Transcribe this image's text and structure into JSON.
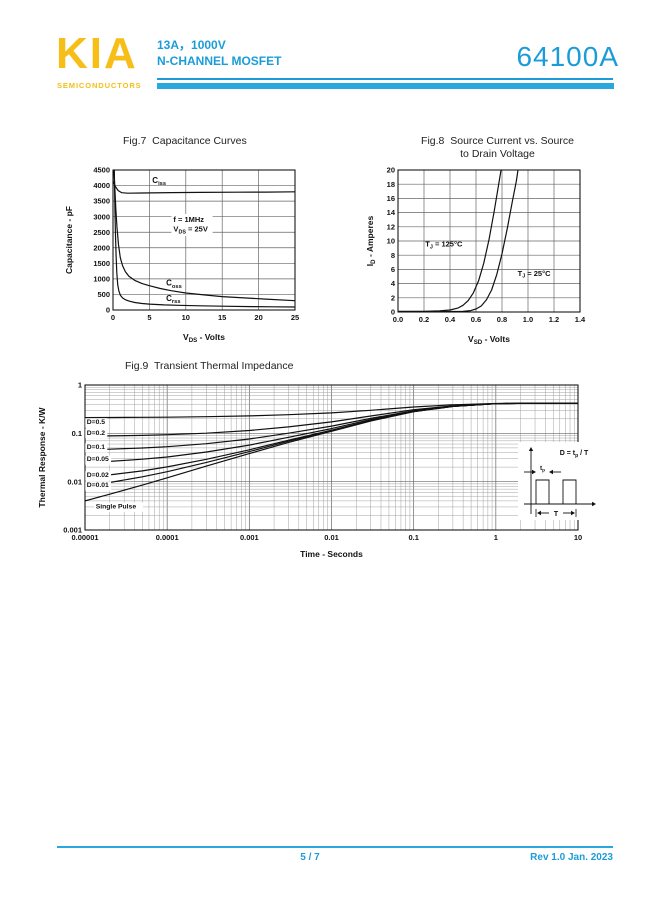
{
  "theme": {
    "brand_yellow": "#F6BE16",
    "brand_blue": "#1B9CD8",
    "bar_blue": "#2AA7DE",
    "chart_line": "#111111"
  },
  "header": {
    "logo_text": "KIA",
    "logo_subtext": "SEMICONDUCTORS",
    "subtitle_line1": "13A，1000V",
    "subtitle_line2": "N-CHANNEL MOSFET",
    "part_number": "64100A"
  },
  "footer": {
    "page_indicator": "5 / 7",
    "revision": "Rev 1.0 Jan. 2023"
  },
  "chart_data": [
    {
      "id": "fig7",
      "type": "line",
      "title": "Fig.7  Capacitance Curves",
      "xlabel": "V_{DS} - Volts",
      "ylabel": "Capacitance - pF",
      "xscale": "linear",
      "yscale": "linear",
      "xlim": [
        0,
        25
      ],
      "ylim": [
        0,
        4500
      ],
      "grid": true,
      "xticks": [
        {
          "v": 0,
          "label": "0"
        },
        {
          "v": 5,
          "label": "5"
        },
        {
          "v": 10,
          "label": "10"
        },
        {
          "v": 15,
          "label": "15"
        },
        {
          "v": 20,
          "label": "20"
        },
        {
          "v": 25,
          "label": "25"
        }
      ],
      "yticks": [
        {
          "v": 0,
          "label": "0"
        },
        {
          "v": 500,
          "label": "500"
        },
        {
          "v": 1000,
          "label": "1000"
        },
        {
          "v": 1500,
          "label": "1500"
        },
        {
          "v": 2000,
          "label": "2000"
        },
        {
          "v": 2500,
          "label": "2500"
        },
        {
          "v": 3000,
          "label": "3000"
        },
        {
          "v": 3500,
          "label": "3500"
        },
        {
          "v": 4000,
          "label": "4000"
        },
        {
          "v": 4500,
          "label": "4500"
        }
      ],
      "series": [
        {
          "name": "Ciss",
          "points": [
            [
              0,
              4150
            ],
            [
              0.3,
              3980
            ],
            [
              0.7,
              3840
            ],
            [
              1.2,
              3770
            ],
            [
              2,
              3755
            ],
            [
              4,
              3760
            ],
            [
              8,
              3775
            ],
            [
              12,
              3780
            ],
            [
              17,
              3785
            ],
            [
              21,
              3790
            ],
            [
              25,
              3800
            ]
          ]
        },
        {
          "name": "Coss",
          "points": [
            [
              0.12,
              4500
            ],
            [
              0.25,
              3950
            ],
            [
              0.4,
              3200
            ],
            [
              0.55,
              2650
            ],
            [
              0.75,
              2100
            ],
            [
              1,
              1680
            ],
            [
              1.3,
              1430
            ],
            [
              1.7,
              1230
            ],
            [
              2.2,
              1080
            ],
            [
              3,
              950
            ],
            [
              4,
              850
            ],
            [
              5,
              780
            ],
            [
              6.5,
              690
            ],
            [
              8,
              620
            ],
            [
              10,
              545
            ],
            [
              12.5,
              485
            ],
            [
              15,
              430
            ],
            [
              18,
              390
            ],
            [
              21,
              350
            ],
            [
              25,
              300
            ]
          ]
        },
        {
          "name": "Crss",
          "points": [
            [
              0.18,
              4500
            ],
            [
              0.25,
              3500
            ],
            [
              0.33,
              2500
            ],
            [
              0.42,
              1750
            ],
            [
              0.52,
              1200
            ],
            [
              0.65,
              820
            ],
            [
              0.8,
              620
            ],
            [
              1,
              480
            ],
            [
              1.3,
              390
            ],
            [
              1.7,
              330
            ],
            [
              2.2,
              285
            ],
            [
              3,
              240
            ],
            [
              4,
              210
            ],
            [
              5,
              190
            ],
            [
              7,
              165
            ],
            [
              9,
              150
            ],
            [
              12,
              135
            ],
            [
              15,
              122
            ],
            [
              19,
              110
            ],
            [
              22,
              102
            ],
            [
              25,
              95
            ]
          ]
        }
      ],
      "labels": [
        {
          "x": 5.4,
          "y": 4080,
          "text": "C_{iss}",
          "size": 8
        },
        {
          "x": 7.3,
          "y": 780,
          "text": "C_{oss}",
          "size": 8
        },
        {
          "x": 7.3,
          "y": 290,
          "text": "C_{rss}",
          "size": 8
        }
      ],
      "annotations": [
        {
          "x": 8.3,
          "y": 2830,
          "lines": [
            "f = 1MHz",
            "V_{DS} = 25V"
          ],
          "bg": true
        }
      ]
    },
    {
      "id": "fig8",
      "type": "line",
      "title": "Fig.8  Source Current vs. Source",
      "title_line2": "to Drain Voltage",
      "xlabel": "V_{SD} -  Volts",
      "ylabel": "I_{D} - Amperes",
      "xscale": "linear",
      "yscale": "linear",
      "xlim": [
        0,
        1.4
      ],
      "ylim": [
        0,
        20
      ],
      "grid": true,
      "xticks": [
        {
          "v": 0,
          "label": "0.0"
        },
        {
          "v": 0.2,
          "label": "0.2"
        },
        {
          "v": 0.4,
          "label": "0.4"
        },
        {
          "v": 0.6,
          "label": "0.6"
        },
        {
          "v": 0.8,
          "label": "0.8"
        },
        {
          "v": 1.0,
          "label": "1.0"
        },
        {
          "v": 1.2,
          "label": "1.2"
        },
        {
          "v": 1.4,
          "label": "1.4"
        }
      ],
      "yticks": [
        {
          "v": 0,
          "label": "0"
        },
        {
          "v": 2,
          "label": "2"
        },
        {
          "v": 4,
          "label": "4"
        },
        {
          "v": 6,
          "label": "6"
        },
        {
          "v": 8,
          "label": "8"
        },
        {
          "v": 10,
          "label": "10"
        },
        {
          "v": 12,
          "label": "12"
        },
        {
          "v": 14,
          "label": "14"
        },
        {
          "v": 16,
          "label": "16"
        },
        {
          "v": 18,
          "label": "18"
        },
        {
          "v": 20,
          "label": "20"
        }
      ],
      "series": [
        {
          "name": "TJ = 125°C",
          "points": [
            [
              0,
              0.1
            ],
            [
              0.2,
              0.1
            ],
            [
              0.32,
              0.15
            ],
            [
              0.4,
              0.28
            ],
            [
              0.46,
              0.55
            ],
            [
              0.5,
              0.95
            ],
            [
              0.54,
              1.6
            ],
            [
              0.58,
              2.7
            ],
            [
              0.62,
              4.4
            ],
            [
              0.66,
              6.9
            ],
            [
              0.7,
              10.2
            ],
            [
              0.74,
              14.2
            ],
            [
              0.77,
              17.5
            ],
            [
              0.795,
              20.3
            ]
          ]
        },
        {
          "name": "TJ = 25°C",
          "points": [
            [
              0,
              0.05
            ],
            [
              0.4,
              0.07
            ],
            [
              0.5,
              0.1
            ],
            [
              0.56,
              0.2
            ],
            [
              0.6,
              0.42
            ],
            [
              0.64,
              0.85
            ],
            [
              0.68,
              1.7
            ],
            [
              0.72,
              3.1
            ],
            [
              0.76,
              5.3
            ],
            [
              0.8,
              8.2
            ],
            [
              0.84,
              11.7
            ],
            [
              0.88,
              15.6
            ],
            [
              0.91,
              18.4
            ],
            [
              0.925,
              20.3
            ]
          ]
        }
      ],
      "labels": [
        {
          "x": 0.21,
          "y": 9.2,
          "text": "T_{J} = 125°C",
          "size": 7.5
        },
        {
          "x": 0.92,
          "y": 5.1,
          "text": "T_{J} = 25°C",
          "size": 7.5
        }
      ]
    },
    {
      "id": "fig9",
      "type": "line",
      "title": "Fig.9  Transient Thermal Impedance",
      "xlabel": "Time - Seconds",
      "ylabel": "Thermal Response - K/W",
      "xscale": "log",
      "yscale": "log",
      "xlim": [
        1e-05,
        10
      ],
      "ylim": [
        0.001,
        1
      ],
      "grid": true,
      "xticks": [
        {
          "v": 1e-05,
          "label": "0.00001"
        },
        {
          "v": 0.0001,
          "label": "0.0001"
        },
        {
          "v": 0.001,
          "label": "0.001"
        },
        {
          "v": 0.01,
          "label": "0.01"
        },
        {
          "v": 0.1,
          "label": "0.1"
        },
        {
          "v": 1,
          "label": "1"
        },
        {
          "v": 10,
          "label": "10"
        }
      ],
      "yticks": [
        {
          "v": 1,
          "label": "1"
        },
        {
          "v": 0.1,
          "label": "0.1"
        },
        {
          "v": 0.01,
          "label": "0.01"
        },
        {
          "v": 0.001,
          "label": "0.001"
        }
      ],
      "x": [
        1e-05,
        2e-05,
        5e-05,
        0.0001,
        0.0003,
        0.001,
        0.003,
        0.01,
        0.03,
        0.1,
        0.3,
        1,
        3,
        10
      ],
      "series": [
        {
          "name": "D=0.5",
          "values": [
            0.212,
            0.2128,
            0.2143,
            0.216,
            0.2205,
            0.229,
            0.2425,
            0.265,
            0.3,
            0.35,
            0.39,
            0.415,
            0.42,
            0.42
          ]
        },
        {
          "name": "D=0.2",
          "values": [
            0.0872,
            0.0884,
            0.0908,
            0.0936,
            0.1008,
            0.1144,
            0.136,
            0.172,
            0.228,
            0.308,
            0.372,
            0.412,
            0.42,
            0.42
          ]
        },
        {
          "name": "D=0.1",
          "values": [
            0.0456,
            0.047,
            0.0497,
            0.0528,
            0.0609,
            0.0762,
            0.1005,
            0.141,
            0.204,
            0.294,
            0.366,
            0.411,
            0.42,
            0.42
          ]
        },
        {
          "name": "D=0.05",
          "values": [
            0.0248,
            0.0262,
            0.0291,
            0.0324,
            0.041,
            0.0571,
            0.0828,
            0.1255,
            0.192,
            0.287,
            0.363,
            0.4105,
            0.42,
            0.42
          ]
        },
        {
          "name": "D=0.02",
          "values": [
            0.0123,
            0.0138,
            0.0167,
            0.0202,
            0.029,
            0.0456,
            0.0721,
            0.1162,
            0.1848,
            0.2828,
            0.3612,
            0.4102,
            0.42,
            0.42
          ]
        },
        {
          "name": "D=0.01",
          "values": [
            0.0082,
            0.0096,
            0.0126,
            0.0161,
            0.025,
            0.0418,
            0.0686,
            0.1131,
            0.1824,
            0.2814,
            0.3606,
            0.4101,
            0.42,
            0.42
          ]
        },
        {
          "name": "Single Pulse",
          "values": [
            0.004,
            0.0055,
            0.0085,
            0.012,
            0.021,
            0.038,
            0.065,
            0.11,
            0.18,
            0.28,
            0.36,
            0.41,
            0.42,
            0.42
          ]
        }
      ],
      "labels": [
        {
          "x": 1.05e-05,
          "y": 0.155,
          "text": "D=0.5",
          "size": 6.8,
          "bg": true
        },
        {
          "x": 1.05e-05,
          "y": 0.093,
          "text": "D=0.2",
          "size": 6.8,
          "bg": true
        },
        {
          "x": 1.05e-05,
          "y": 0.047,
          "text": "D=0.1",
          "size": 6.8,
          "bg": true
        },
        {
          "x": 1.05e-05,
          "y": 0.0265,
          "text": "D=0.05",
          "size": 6.8,
          "bg": true
        },
        {
          "x": 1.05e-05,
          "y": 0.0125,
          "text": "D=0.02",
          "size": 6.8,
          "bg": true
        },
        {
          "x": 1.05e-05,
          "y": 0.0077,
          "text": "D=0.01",
          "size": 6.8,
          "bg": true
        },
        {
          "x": 1.35e-05,
          "y": 0.0028,
          "text": "Single Pulse",
          "size": 6.8,
          "bg": true
        }
      ],
      "inset": {
        "formula": "D = t_{p} / T",
        "pulse_width_label": "t_{p}",
        "period_label": "T"
      }
    }
  ]
}
